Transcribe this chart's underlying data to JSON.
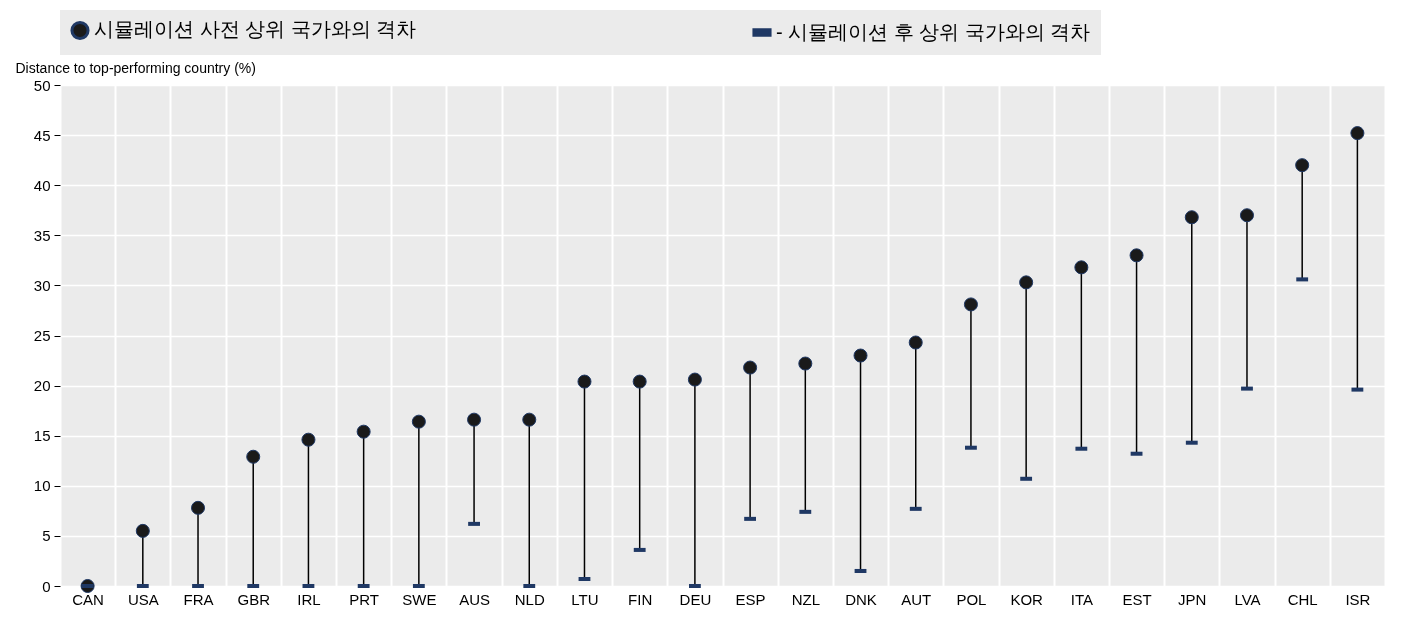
{
  "chart_data": {
    "type": "scatter",
    "ylabel": "Distance to top-performing country (%)",
    "categories": [
      "CAN",
      "USA",
      "FRA",
      "GBR",
      "IRL",
      "PRT",
      "SWE",
      "AUS",
      "NLD",
      "LTU",
      "FIN",
      "DEU",
      "ESP",
      "NZL",
      "DNK",
      "AUT",
      "POL",
      "KOR",
      "ITA",
      "EST",
      "JPN",
      "LVA",
      "CHL",
      "ISR"
    ],
    "series": [
      {
        "name": "시뮬레이션 사전 상위 국가와의 격차",
        "color": "#1a1a1a",
        "marker": "circle",
        "values": [
          0,
          5.5,
          7.8,
          12.9,
          14.6,
          15.4,
          16.4,
          16.6,
          16.6,
          20.4,
          20.4,
          20.6,
          21.8,
          22.2,
          23.0,
          24.3,
          28.1,
          30.3,
          31.8,
          33.0,
          36.8,
          37.0,
          42.0,
          45.2
        ]
      },
      {
        "name": "- 시뮬레이션 후 상위 국가와의 격차",
        "color": "#1f3864",
        "values": [
          0,
          0,
          0,
          0,
          0,
          0,
          0,
          6.2,
          0,
          0.7,
          3.6,
          0,
          6.7,
          7.4,
          1.5,
          7.7,
          13.8,
          10.7,
          13.7,
          13.2,
          14.3,
          19.7,
          30.6,
          19.6
        ]
      }
    ],
    "ylim": [
      0,
      50
    ],
    "yticks": [
      0,
      5,
      10,
      15,
      20,
      25,
      30,
      35,
      40,
      45,
      50
    ],
    "grid": true,
    "legend": "top"
  }
}
